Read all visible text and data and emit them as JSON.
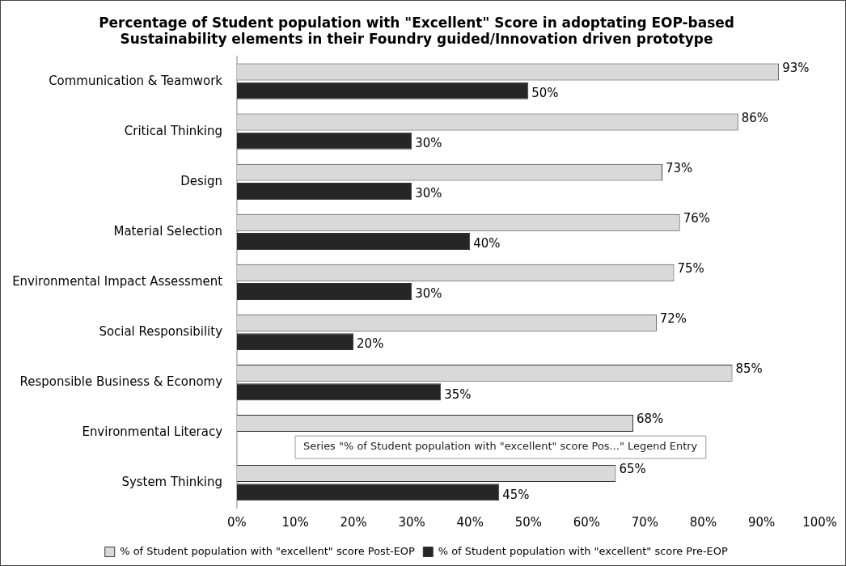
{
  "chart_data": {
    "type": "bar",
    "orientation": "horizontal",
    "title": "Percentage of Student population with \"Excellent\" Score in adoptating EOP-based\nSustainability elements in their Foundry guided/Innovation driven prototype",
    "categories": [
      "Communication & Teamwork",
      "Critical Thinking",
      "Design",
      "Material Selection",
      "Environmental Impact Assessment",
      "Social Responsibility",
      "Responsible Business & Economy",
      "Environmental Literacy",
      "System Thinking"
    ],
    "series": [
      {
        "name": "% of Student population with \"excellent\" score Post-EOP",
        "color": "#d9d9d9",
        "values": [
          93,
          86,
          73,
          76,
          75,
          72,
          85,
          68,
          65
        ],
        "value_labels": [
          "93%",
          "86%",
          "73%",
          "76%",
          "75%",
          "72%",
          "85%",
          "68%",
          "65%"
        ]
      },
      {
        "name": "% of Student population with \"excellent\" score Pre-EOP",
        "color": "#262626",
        "values": [
          50,
          30,
          30,
          40,
          30,
          20,
          35,
          null,
          45
        ],
        "value_labels": [
          "50%",
          "30%",
          "30%",
          "40%",
          "30%",
          "20%",
          "35%",
          null,
          "45%"
        ]
      }
    ],
    "xlim": [
      0,
      100
    ],
    "xticks": [
      {
        "value": 0,
        "label": "0%"
      },
      {
        "value": 10,
        "label": "10%"
      },
      {
        "value": 20,
        "label": "20%"
      },
      {
        "value": 30,
        "label": "30%"
      },
      {
        "value": 40,
        "label": "40%"
      },
      {
        "value": 50,
        "label": "50%"
      },
      {
        "value": 60,
        "label": "60%"
      },
      {
        "value": 70,
        "label": "70%"
      },
      {
        "value": 80,
        "label": "80%"
      },
      {
        "value": 90,
        "label": "90%"
      },
      {
        "value": 100,
        "label": "100%"
      }
    ],
    "grid": false,
    "legend": "bottom",
    "annotations": [
      {
        "text": "Series \"% of Student population with \"excellent\" score Pos...\" Legend Entry",
        "x": 10,
        "y": "Environmental Literacy"
      }
    ]
  }
}
